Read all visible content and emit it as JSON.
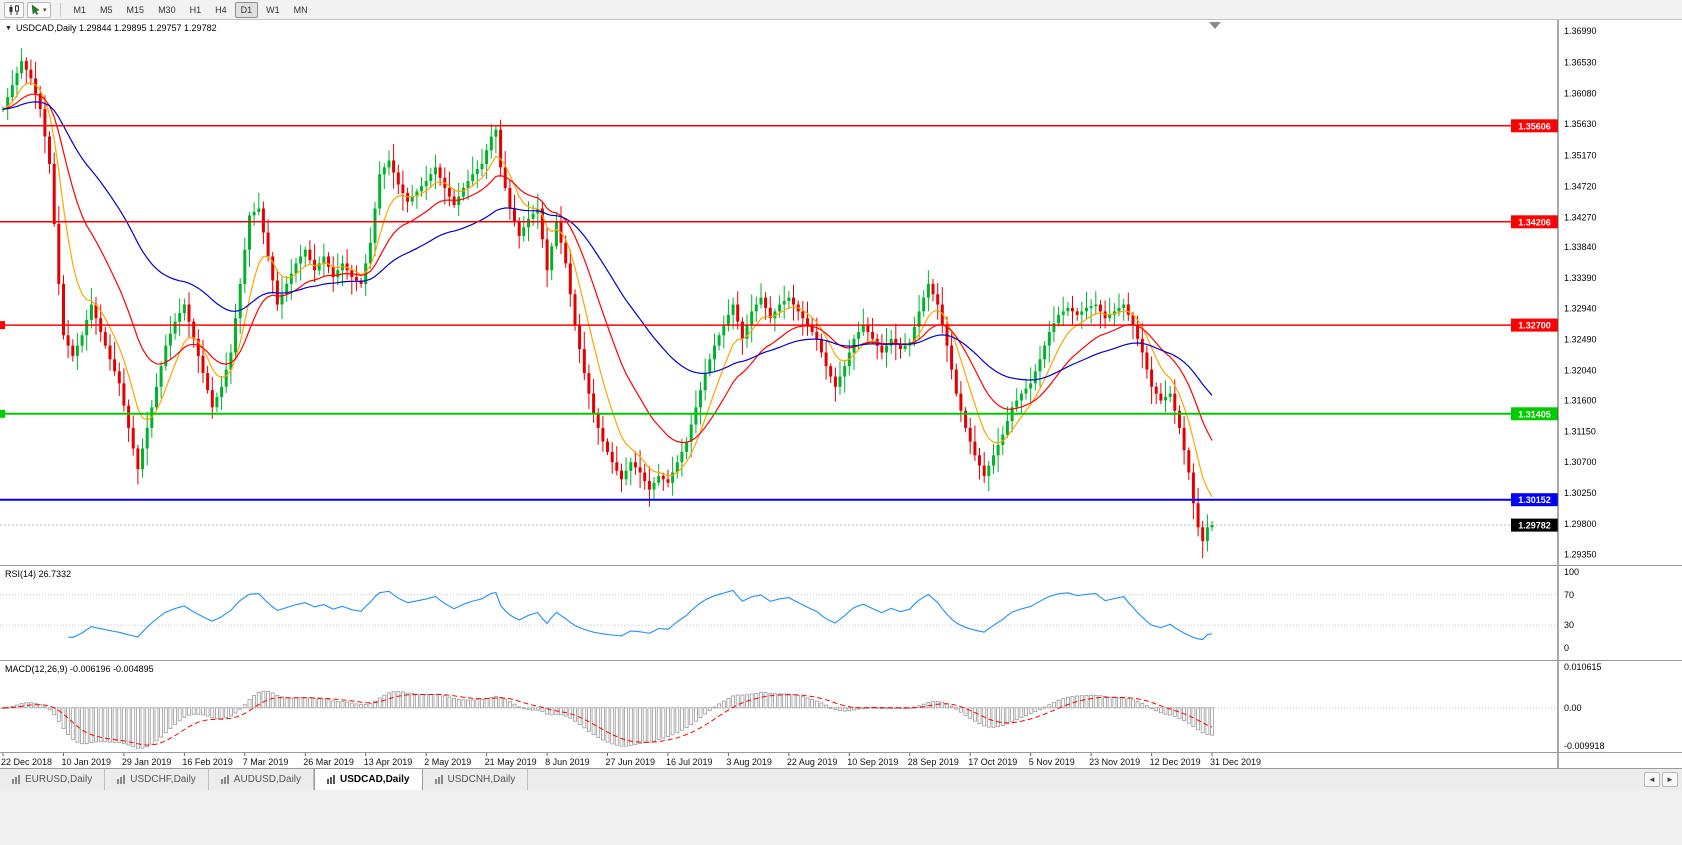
{
  "toolbar": {
    "timeframes": [
      {
        "label": "M1"
      },
      {
        "label": "M5"
      },
      {
        "label": "M15"
      },
      {
        "label": "M30"
      },
      {
        "label": "H1"
      },
      {
        "label": "H4"
      },
      {
        "label": "D1"
      },
      {
        "label": "W1"
      },
      {
        "label": "MN"
      }
    ]
  },
  "chart": {
    "collapse_arrow": "▼",
    "header": "USDCAD,Daily 1.29844 1.29895 1.29757 1.29782"
  },
  "chart_data": {
    "type": "candlestick",
    "symbol": "USDCAD",
    "timeframe": "Daily",
    "ohlc_label": {
      "open": "1.29844",
      "high": "1.29895",
      "low": "1.29757",
      "close": "1.29782"
    },
    "candle_count": 261,
    "bars_per_label": 13,
    "x_labels": [
      "22 Dec 2018",
      "10 Jan 2019",
      "29 Jan 2019",
      "16 Feb 2019",
      "7 Mar 2019",
      "26 Mar 2019",
      "13 Apr 2019",
      "2 May 2019",
      "21 May 2019",
      "8 Jun 2019",
      "27 Jun 2019",
      "16 Jul 2019",
      "3 Aug 2019",
      "22 Aug 2019",
      "10 Sep 2019",
      "28 Sep 2019",
      "17 Oct 2019",
      "5 Nov 2019",
      "23 Nov 2019",
      "12 Dec 2019",
      "31 Dec 2019"
    ],
    "y_ticks": [
      "1.36990",
      "1.36530",
      "1.36080",
      "1.35630",
      "1.35170",
      "1.34720",
      "1.34270",
      "1.33840",
      "1.33390",
      "1.32940",
      "1.32490",
      "1.32040",
      "1.31600",
      "1.31150",
      "1.30700",
      "1.30250",
      "1.29800",
      "1.29350"
    ],
    "y_range": [
      1.292,
      1.3715
    ],
    "close_path": [
      [
        0,
        1.3585
      ],
      [
        2,
        1.362
      ],
      [
        4,
        1.3655
      ],
      [
        6,
        1.363
      ],
      [
        8,
        1.3585
      ],
      [
        10,
        1.3505
      ],
      [
        12,
        1.333
      ],
      [
        13,
        1.3255
      ],
      [
        15,
        1.3225
      ],
      [
        17,
        1.3255
      ],
      [
        19,
        1.33
      ],
      [
        21,
        1.326
      ],
      [
        23,
        1.322
      ],
      [
        25,
        1.3185
      ],
      [
        27,
        1.312
      ],
      [
        29,
        1.306
      ],
      [
        31,
        1.312
      ],
      [
        33,
        1.318
      ],
      [
        35,
        1.324
      ],
      [
        37,
        1.3275
      ],
      [
        39,
        1.33
      ],
      [
        41,
        1.325
      ],
      [
        43,
        1.32
      ],
      [
        45,
        1.315
      ],
      [
        47,
        1.318
      ],
      [
        49,
        1.323
      ],
      [
        51,
        1.333
      ],
      [
        53,
        1.343
      ],
      [
        55,
        1.344
      ],
      [
        57,
        1.337
      ],
      [
        59,
        1.33
      ],
      [
        61,
        1.333
      ],
      [
        63,
        1.336
      ],
      [
        65,
        1.338
      ],
      [
        67,
        1.335
      ],
      [
        69,
        1.337
      ],
      [
        71,
        1.334
      ],
      [
        73,
        1.336
      ],
      [
        75,
        1.334
      ],
      [
        77,
        1.333
      ],
      [
        79,
        1.339
      ],
      [
        81,
        1.349
      ],
      [
        83,
        1.351
      ],
      [
        85,
        1.3475
      ],
      [
        87,
        1.345
      ],
      [
        89,
        1.3465
      ],
      [
        91,
        1.348
      ],
      [
        93,
        1.35
      ],
      [
        95,
        1.347
      ],
      [
        97,
        1.3445
      ],
      [
        99,
        1.347
      ],
      [
        101,
        1.349
      ],
      [
        103,
        1.3505
      ],
      [
        105,
        1.3545
      ],
      [
        106,
        1.3555
      ],
      [
        107,
        1.35
      ],
      [
        109,
        1.344
      ],
      [
        111,
        1.34
      ],
      [
        113,
        1.3425
      ],
      [
        115,
        1.344
      ],
      [
        117,
        1.335
      ],
      [
        119,
        1.342
      ],
      [
        121,
        1.336
      ],
      [
        123,
        1.327
      ],
      [
        125,
        1.32
      ],
      [
        127,
        1.314
      ],
      [
        129,
        1.31
      ],
      [
        131,
        1.307
      ],
      [
        133,
        1.3045
      ],
      [
        135,
        1.307
      ],
      [
        137,
        1.3055
      ],
      [
        139,
        1.303
      ],
      [
        141,
        1.305
      ],
      [
        143,
        1.304
      ],
      [
        145,
        1.307
      ],
      [
        147,
        1.31
      ],
      [
        149,
        1.315
      ],
      [
        151,
        1.32
      ],
      [
        153,
        1.324
      ],
      [
        155,
        1.327
      ],
      [
        157,
        1.33
      ],
      [
        159,
        1.325
      ],
      [
        161,
        1.329
      ],
      [
        163,
        1.331
      ],
      [
        165,
        1.328
      ],
      [
        167,
        1.33
      ],
      [
        169,
        1.331
      ],
      [
        171,
        1.329
      ],
      [
        173,
        1.327
      ],
      [
        175,
        1.325
      ],
      [
        177,
        1.321
      ],
      [
        179,
        1.318
      ],
      [
        181,
        1.321
      ],
      [
        183,
        1.325
      ],
      [
        185,
        1.327
      ],
      [
        187,
        1.325
      ],
      [
        189,
        1.323
      ],
      [
        191,
        1.325
      ],
      [
        193,
        1.3235
      ],
      [
        195,
        1.3245
      ],
      [
        197,
        1.329
      ],
      [
        199,
        1.333
      ],
      [
        201,
        1.33
      ],
      [
        203,
        1.324
      ],
      [
        205,
        1.317
      ],
      [
        207,
        1.312
      ],
      [
        209,
        1.308
      ],
      [
        211,
        1.305
      ],
      [
        213,
        1.308
      ],
      [
        215,
        1.311
      ],
      [
        217,
        1.315
      ],
      [
        219,
        1.317
      ],
      [
        221,
        1.3185
      ],
      [
        223,
        1.322
      ],
      [
        225,
        1.326
      ],
      [
        227,
        1.3285
      ],
      [
        229,
        1.3295
      ],
      [
        231,
        1.3285
      ],
      [
        233,
        1.3295
      ],
      [
        235,
        1.33
      ],
      [
        237,
        1.328
      ],
      [
        239,
        1.329
      ],
      [
        241,
        1.33
      ],
      [
        243,
        1.327
      ],
      [
        245,
        1.323
      ],
      [
        247,
        1.318
      ],
      [
        249,
        1.316
      ],
      [
        251,
        1.317
      ],
      [
        253,
        1.312
      ],
      [
        255,
        1.3055
      ],
      [
        256,
        1.301
      ],
      [
        257,
        1.2975
      ],
      [
        258,
        1.2955
      ],
      [
        259,
        1.2975
      ],
      [
        260,
        1.29782
      ]
    ],
    "colors": {
      "up": "#00B32C",
      "down": "#E40000",
      "background": "#FFFFFF"
    },
    "moving_averages": [
      {
        "period": 8,
        "color": "#FFA500"
      },
      {
        "period": 20,
        "color": "#FF0000"
      },
      {
        "period": 50,
        "color": "#0000CD"
      }
    ],
    "levels": [
      {
        "value": 1.35606,
        "label": "1.35606",
        "color": "#FF0000",
        "width": 1.5
      },
      {
        "value": 1.34206,
        "label": "1.34206",
        "color": "#FF0000",
        "width": 1.5
      },
      {
        "value": 1.327,
        "label": "1.32700",
        "color": "#FF0000",
        "width": 1.5,
        "left_marker": true
      },
      {
        "value": 1.31405,
        "label": "1.31405",
        "color": "#00CC00",
        "width": 2,
        "left_marker": true
      },
      {
        "value": 1.30152,
        "label": "1.30152",
        "color": "#0000FF",
        "width": 2
      }
    ],
    "current_price": {
      "value": 1.29782,
      "label": "1.29782",
      "color": "#000000"
    },
    "indicators": [
      {
        "name": "RSI",
        "label": "RSI(14) 26.7332",
        "period": 14,
        "levels": [
          70,
          30
        ],
        "axis": [
          "100",
          "70",
          "30",
          "0"
        ],
        "color": "#1E90FF"
      },
      {
        "name": "MACD",
        "label": "MACD(12,26,9) -0.006196 -0.004895",
        "fast": 12,
        "slow": 26,
        "signal": 9,
        "axis_max": "0.010615",
        "axis_zero": "0.00",
        "axis_min": "-0.009918",
        "hist_color": "#9a9a9a",
        "signal_color": "#FF0000"
      }
    ]
  },
  "tabs": {
    "items": [
      {
        "label": "EURUSD,Daily"
      },
      {
        "label": "USDCHF,Daily"
      },
      {
        "label": "AUDUSD,Daily"
      },
      {
        "label": "USDCAD,Daily"
      },
      {
        "label": "USDCNH,Daily"
      }
    ],
    "scroll_left": "◄",
    "scroll_right": "►"
  }
}
